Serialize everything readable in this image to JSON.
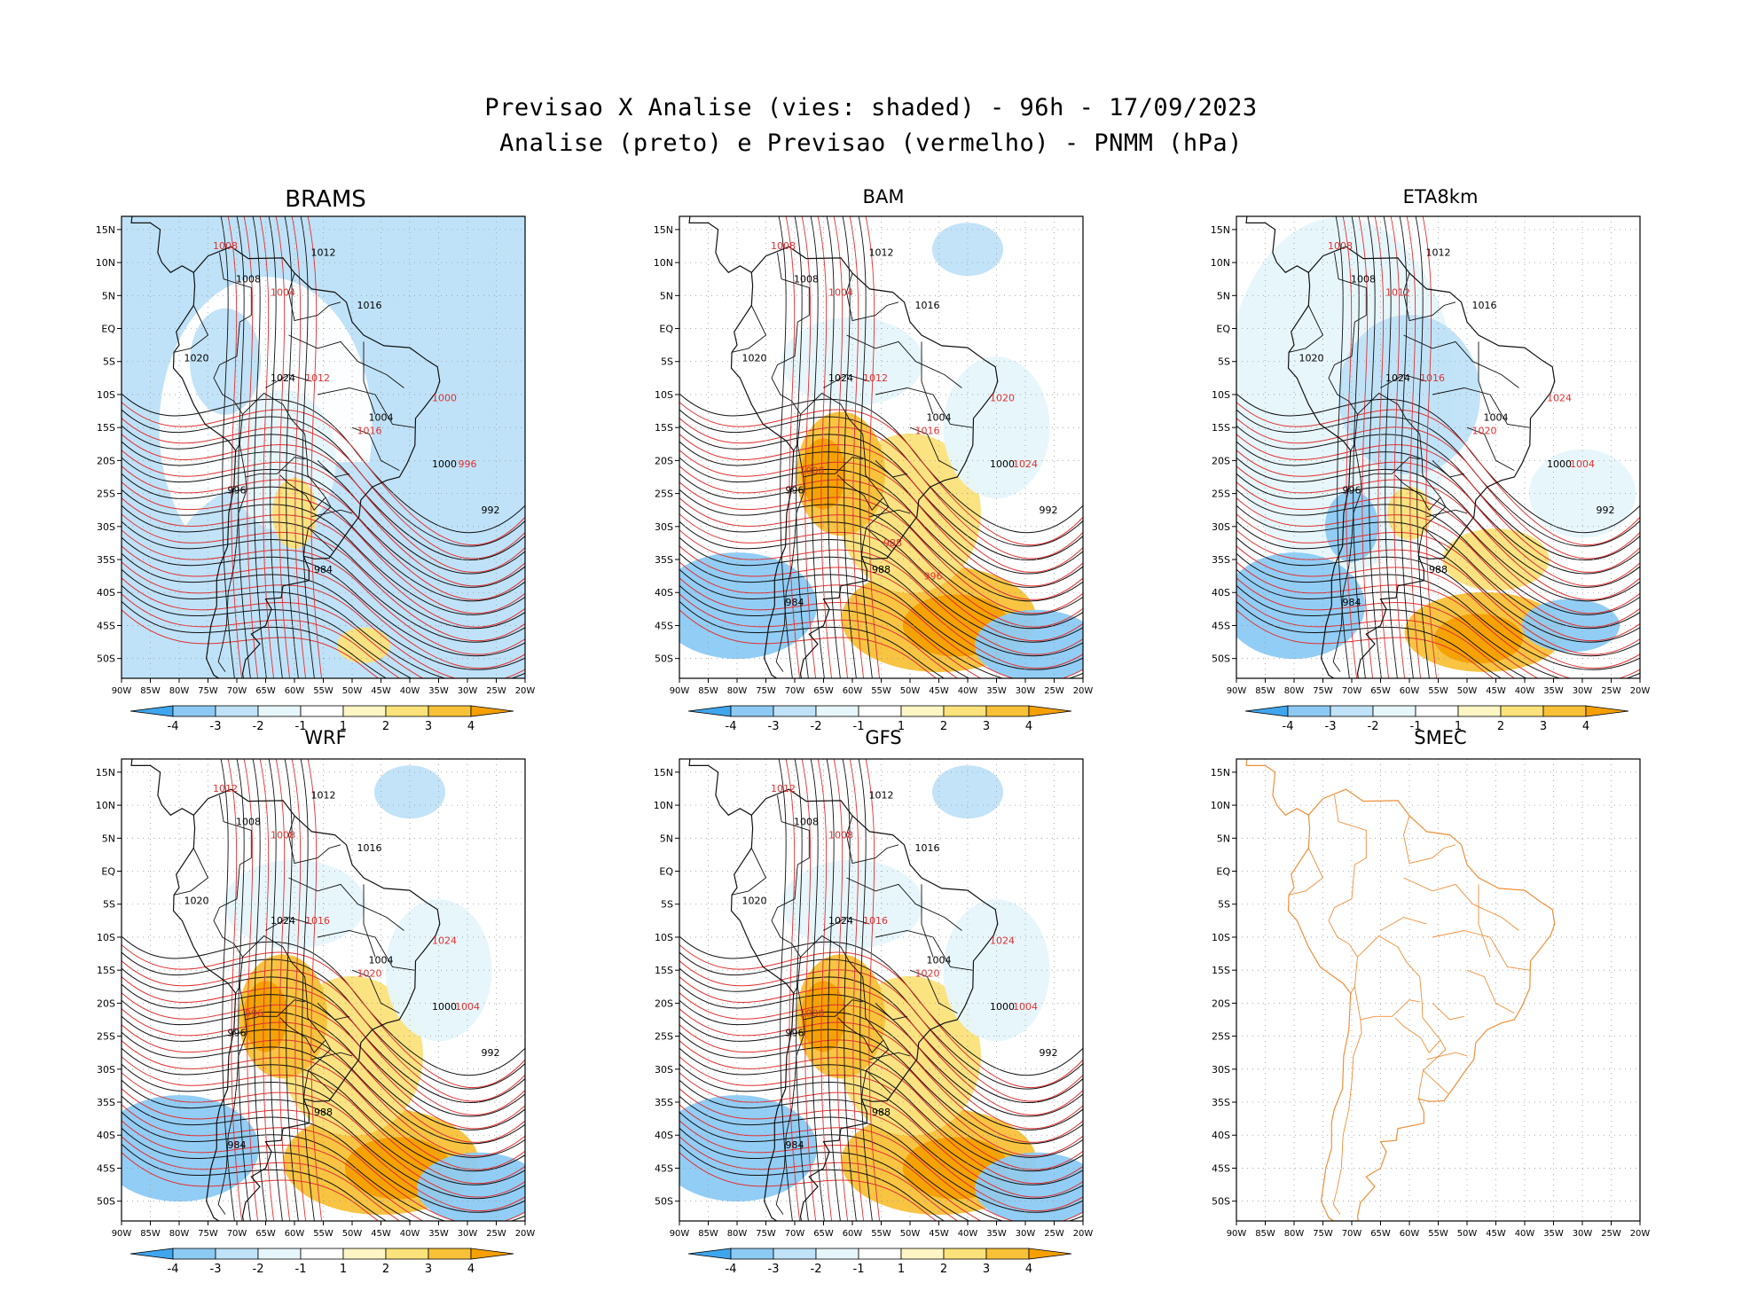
{
  "title": {
    "line1": "Previsao X Analise (vies: shaded) - 96h - 17/09/2023",
    "line2": "Analise (preto) e Previsao (vermelho) - PNMM (hPa)"
  },
  "axes": {
    "lat_labels": [
      "15N",
      "10N",
      "5N",
      "EQ",
      "5S",
      "10S",
      "15S",
      "20S",
      "25S",
      "30S",
      "35S",
      "40S",
      "45S",
      "50S"
    ],
    "lon_labels": [
      "90W",
      "85W",
      "80W",
      "75W",
      "70W",
      "65W",
      "60W",
      "55W",
      "50W",
      "45W",
      "40W",
      "35W",
      "30W",
      "25W",
      "20W"
    ]
  },
  "colorbar": {
    "labels": [
      "-4",
      "-3",
      "-2",
      "-1",
      "1",
      "2",
      "3",
      "4"
    ],
    "colors": [
      "#3fa6ee",
      "#8ccaf4",
      "#bfe2f8",
      "#e6f6fb",
      "#ffffff",
      "#fdf6c4",
      "#fbe27a",
      "#f8c138",
      "#f5a000"
    ]
  },
  "panels": [
    {
      "name": "BRAMS",
      "has_colorbar": true,
      "bias": "negative",
      "black_labels": [
        "1012",
        "1008",
        "1016",
        "1020",
        "1024",
        "1004",
        "1000",
        "996",
        "992",
        "984"
      ],
      "red_labels": [
        "1008",
        "1004",
        "1012",
        "1016",
        "1000",
        "996"
      ]
    },
    {
      "name": "BAM",
      "has_colorbar": true,
      "bias": "positive",
      "black_labels": [
        "1012",
        "1008",
        "1016",
        "1020",
        "1024",
        "1004",
        "1000",
        "996",
        "992",
        "988",
        "984"
      ],
      "red_labels": [
        "1008",
        "1004",
        "1012",
        "1016",
        "1020",
        "1024",
        "1000",
        "996",
        "988"
      ]
    },
    {
      "name": "ETA8km",
      "has_colorbar": true,
      "bias": "mixed",
      "black_labels": [
        "1012",
        "1008",
        "1016",
        "1020",
        "1024",
        "1004",
        "1000",
        "996",
        "992",
        "988",
        "984"
      ],
      "red_labels": [
        "1008",
        "1012",
        "1016",
        "1020",
        "1024",
        "1004"
      ]
    },
    {
      "name": "WRF",
      "has_colorbar": true,
      "bias": "positive",
      "black_labels": [
        "1012",
        "1008",
        "1016",
        "1020",
        "1024",
        "1004",
        "1000",
        "996",
        "992",
        "988",
        "984"
      ],
      "red_labels": [
        "1012",
        "1008",
        "1016",
        "1020",
        "1024",
        "1004",
        "996"
      ]
    },
    {
      "name": "GFS",
      "has_colorbar": true,
      "bias": "positive",
      "black_labels": [
        "1012",
        "1008",
        "1016",
        "1020",
        "1024",
        "1004",
        "1000",
        "996",
        "992",
        "988",
        "984"
      ],
      "red_labels": [
        "1012",
        "1008",
        "1016",
        "1020",
        "1024",
        "1004",
        "1000"
      ]
    },
    {
      "name": "SMEC",
      "has_colorbar": false,
      "bias": "none",
      "black_labels": [],
      "red_labels": []
    }
  ]
}
